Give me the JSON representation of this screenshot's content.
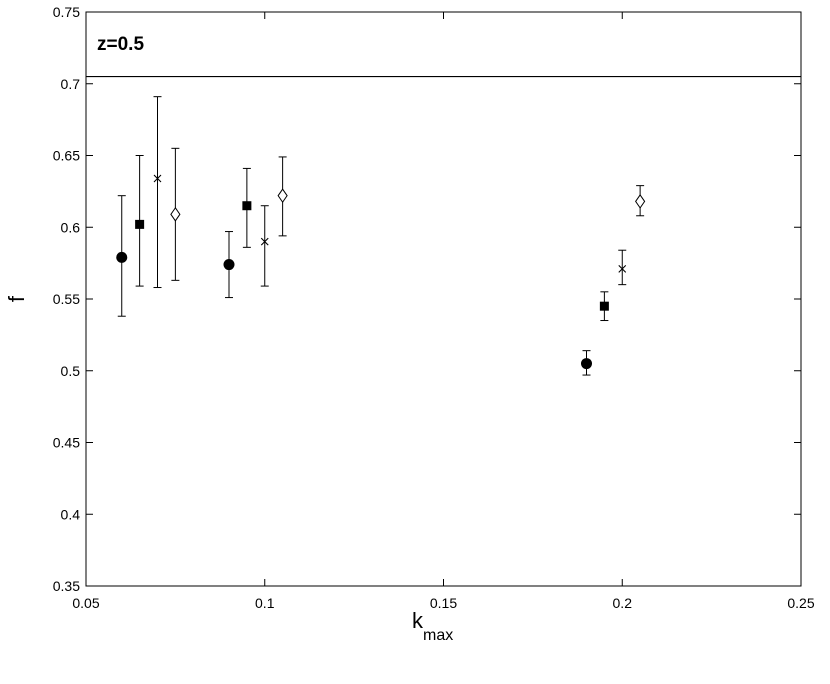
{
  "chart_data": {
    "type": "scatter",
    "title": "",
    "annotation": "z=0.5",
    "xlabel": "k",
    "xlabel_subscript": "max",
    "ylabel": "f",
    "xlim": [
      0.05,
      0.25
    ],
    "ylim": [
      0.35,
      0.75
    ],
    "x_ticks": [
      0.05,
      0.1,
      0.15,
      0.2,
      0.25
    ],
    "x_tick_labels": [
      "0.05",
      "0.1",
      "0.15",
      "0.2",
      "0.25"
    ],
    "y_ticks": [
      0.35,
      0.4,
      0.45,
      0.5,
      0.55,
      0.6,
      0.65,
      0.7,
      0.75
    ],
    "y_tick_labels": [
      "0.35",
      "0.4",
      "0.45",
      "0.5",
      "0.55",
      "0.6",
      "0.65",
      "0.7",
      "0.75"
    ],
    "grid": false,
    "reference_line": {
      "y": 0.705
    },
    "series": [
      {
        "marker": "circle",
        "points": [
          {
            "x": 0.06,
            "y": 0.579,
            "lo": 0.538,
            "hi": 0.622
          },
          {
            "x": 0.09,
            "y": 0.574,
            "lo": 0.551,
            "hi": 0.597
          },
          {
            "x": 0.19,
            "y": 0.505,
            "lo": 0.497,
            "hi": 0.514
          }
        ]
      },
      {
        "marker": "square",
        "points": [
          {
            "x": 0.065,
            "y": 0.602,
            "lo": 0.559,
            "hi": 0.65
          },
          {
            "x": 0.095,
            "y": 0.615,
            "lo": 0.586,
            "hi": 0.641
          },
          {
            "x": 0.195,
            "y": 0.545,
            "lo": 0.535,
            "hi": 0.555
          }
        ]
      },
      {
        "marker": "cross",
        "points": [
          {
            "x": 0.07,
            "y": 0.634,
            "lo": 0.558,
            "hi": 0.691
          },
          {
            "x": 0.1,
            "y": 0.59,
            "lo": 0.559,
            "hi": 0.615
          },
          {
            "x": 0.2,
            "y": 0.571,
            "lo": 0.56,
            "hi": 0.584
          }
        ]
      },
      {
        "marker": "diamond",
        "points": [
          {
            "x": 0.075,
            "y": 0.609,
            "lo": 0.563,
            "hi": 0.655
          },
          {
            "x": 0.105,
            "y": 0.622,
            "lo": 0.594,
            "hi": 0.649
          },
          {
            "x": 0.205,
            "y": 0.618,
            "lo": 0.608,
            "hi": 0.629
          }
        ]
      }
    ]
  }
}
